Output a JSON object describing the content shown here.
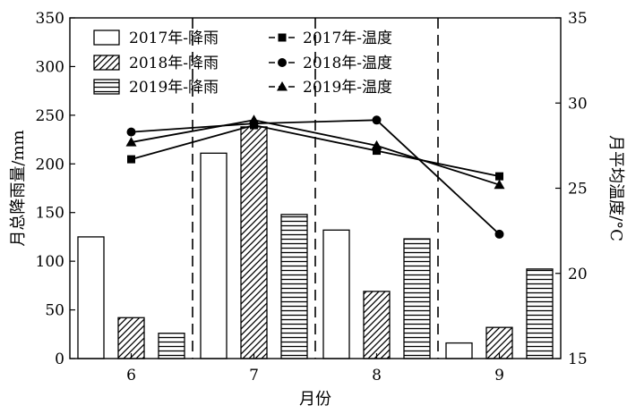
{
  "chart_data": {
    "type": "bar+line",
    "categories": [
      "6",
      "7",
      "8",
      "9"
    ],
    "xlabel": "月份",
    "ylabel_left": "月总降雨量/mm",
    "ylabel_right": "月平均温度/°C",
    "ylim_left": [
      0,
      350
    ],
    "ylim_right": [
      15,
      35
    ],
    "yticks_left": [
      "0",
      "50",
      "100",
      "150",
      "200",
      "250",
      "300",
      "350"
    ],
    "yticks_right": [
      "15",
      "20",
      "25",
      "30",
      "35"
    ],
    "bar_series": [
      {
        "name": "2017年-降雨",
        "pattern": "empty",
        "values": [
          125,
          211,
          132,
          16
        ]
      },
      {
        "name": "2018年-降雨",
        "pattern": "diagonal",
        "values": [
          42,
          238,
          69,
          32
        ]
      },
      {
        "name": "2019年-降雨",
        "pattern": "horizontal",
        "values": [
          26,
          148,
          123,
          92
        ]
      }
    ],
    "line_series": [
      {
        "name": "2017年-温度",
        "marker": "square",
        "values": [
          26.7,
          28.7,
          27.2,
          25.7
        ]
      },
      {
        "name": "2018年-温度",
        "marker": "circle",
        "values": [
          28.3,
          28.8,
          29.0,
          22.3
        ]
      },
      {
        "name": "2019年-温度",
        "marker": "triangle",
        "values": [
          27.7,
          29.0,
          27.5,
          25.2
        ]
      }
    ],
    "grid": false,
    "legend_position": "top"
  }
}
